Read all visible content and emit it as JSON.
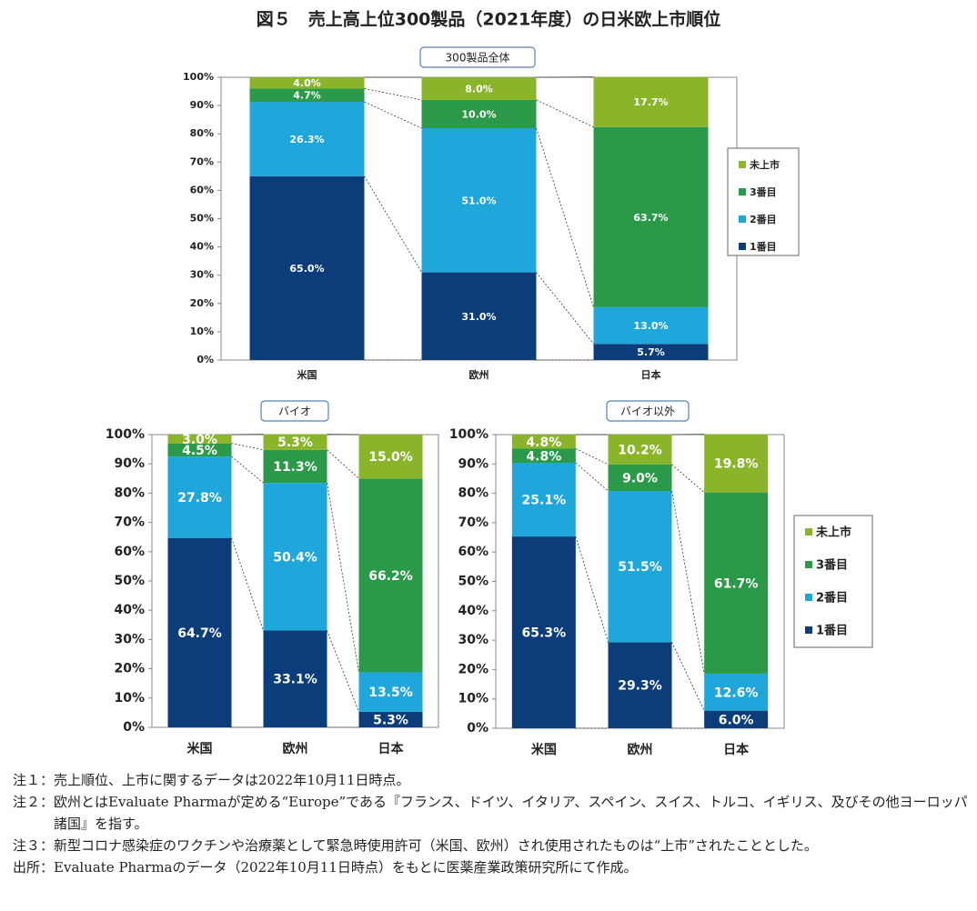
{
  "title": "図５　売上高上位300製品（2021年度）の日米欧上市順位",
  "chart_data": [
    {
      "type": "stacked_bar",
      "title": "300製品全体",
      "categories": [
        "米国",
        "欧州",
        "日本"
      ],
      "series": [
        {
          "name": "1番目",
          "color": "#0b3d7a",
          "values": [
            65.0,
            31.0,
            5.7
          ],
          "value_labels": [
            "65.0%",
            "31.0%",
            "5.7%"
          ]
        },
        {
          "name": "2番目",
          "color": "#1fa7dc",
          "values": [
            26.3,
            51.0,
            13.0
          ],
          "value_labels": [
            "26.3%",
            "51.0%",
            "13.0%"
          ]
        },
        {
          "name": "3番目",
          "color": "#2a9a48",
          "values": [
            4.7,
            10.0,
            63.7
          ],
          "value_labels": [
            "4.7%",
            "10.0%",
            "63.7%"
          ]
        },
        {
          "name": "未上市",
          "color": "#8ab52a",
          "values": [
            4.0,
            8.0,
            17.7
          ],
          "value_labels": [
            "4.0%",
            "8.0%",
            "17.7%"
          ]
        }
      ],
      "ylim": [
        0,
        100
      ],
      "yticks": [
        {
          "value": 0,
          "label": "0%"
        },
        {
          "value": 10,
          "label": "10%"
        },
        {
          "value": 20,
          "label": "20%"
        },
        {
          "value": 30,
          "label": "30%"
        },
        {
          "value": 40,
          "label": "40%"
        },
        {
          "value": 50,
          "label": "50%"
        },
        {
          "value": 60,
          "label": "60%"
        },
        {
          "value": 70,
          "label": "70%"
        },
        {
          "value": 80,
          "label": "80%"
        },
        {
          "value": 90,
          "label": "90%"
        },
        {
          "value": 100,
          "label": "100%"
        }
      ],
      "legend": "right"
    },
    {
      "type": "stacked_bar",
      "title": "バイオ",
      "categories": [
        "米国",
        "欧州",
        "日本"
      ],
      "series": [
        {
          "name": "1番目",
          "color": "#0b3d7a",
          "values": [
            64.7,
            33.1,
            5.3
          ],
          "value_labels": [
            "64.7%",
            "33.1%",
            "5.3%"
          ]
        },
        {
          "name": "2番目",
          "color": "#1fa7dc",
          "values": [
            27.8,
            50.4,
            13.5
          ],
          "value_labels": [
            "27.8%",
            "50.4%",
            "13.5%"
          ]
        },
        {
          "name": "3番目",
          "color": "#2a9a48",
          "values": [
            4.5,
            11.3,
            66.2
          ],
          "value_labels": [
            "4.5%",
            "11.3%",
            "66.2%"
          ]
        },
        {
          "name": "未上市",
          "color": "#8ab52a",
          "values": [
            3.0,
            5.3,
            15.0
          ],
          "value_labels": [
            "3.0%",
            "5.3%",
            "15.0%"
          ]
        }
      ],
      "ylim": [
        0,
        100
      ],
      "yticks": [
        {
          "value": 0,
          "label": "0%"
        },
        {
          "value": 10,
          "label": "10%"
        },
        {
          "value": 20,
          "label": "20%"
        },
        {
          "value": 30,
          "label": "30%"
        },
        {
          "value": 40,
          "label": "40%"
        },
        {
          "value": 50,
          "label": "50%"
        },
        {
          "value": 60,
          "label": "60%"
        },
        {
          "value": 70,
          "label": "70%"
        },
        {
          "value": 80,
          "label": "80%"
        },
        {
          "value": 90,
          "label": "90%"
        },
        {
          "value": 100,
          "label": "100%"
        }
      ]
    },
    {
      "type": "stacked_bar",
      "title": "バイオ以外",
      "categories": [
        "米国",
        "欧州",
        "日本"
      ],
      "series": [
        {
          "name": "1番目",
          "color": "#0b3d7a",
          "values": [
            65.3,
            29.3,
            6.0
          ],
          "value_labels": [
            "65.3%",
            "29.3%",
            "6.0%"
          ]
        },
        {
          "name": "2番目",
          "color": "#1fa7dc",
          "values": [
            25.1,
            51.5,
            12.6
          ],
          "value_labels": [
            "25.1%",
            "51.5%",
            "12.6%"
          ]
        },
        {
          "name": "3番目",
          "color": "#2a9a48",
          "values": [
            4.8,
            9.0,
            61.7
          ],
          "value_labels": [
            "4.8%",
            "9.0%",
            "61.7%"
          ]
        },
        {
          "name": "未上市",
          "color": "#8ab52a",
          "values": [
            4.8,
            10.2,
            19.8
          ],
          "value_labels": [
            "4.8%",
            "10.2%",
            "19.8%"
          ]
        }
      ],
      "ylim": [
        0,
        100
      ],
      "yticks": [
        {
          "value": 0,
          "label": "0%"
        },
        {
          "value": 10,
          "label": "10%"
        },
        {
          "value": 20,
          "label": "20%"
        },
        {
          "value": 30,
          "label": "30%"
        },
        {
          "value": 40,
          "label": "40%"
        },
        {
          "value": 50,
          "label": "50%"
        },
        {
          "value": 60,
          "label": "60%"
        },
        {
          "value": 70,
          "label": "70%"
        },
        {
          "value": 80,
          "label": "80%"
        },
        {
          "value": 90,
          "label": "90%"
        },
        {
          "value": 100,
          "label": "100%"
        }
      ],
      "legend": "right"
    }
  ],
  "notes": [
    {
      "label": "注１：",
      "text": "売上順位、上市に関するデータは2022年10月11日時点。"
    },
    {
      "label": "注２：",
      "text": "欧州とはEvaluate Pharmaが定める“Europe”である『フランス、ドイツ、イタリア、スペイン、スイス、トルコ、イギリス、及びその他ヨーロッパ諸国』を指す。"
    },
    {
      "label": "注３：",
      "text": "新型コロナ感染症のワクチンや治療薬として緊急時使用許可（米国、欧州）され使用されたものは“上市”されたこととした。"
    },
    {
      "label": "出所：",
      "text": "Evaluate Pharmaのデータ（2022年10月11日時点）をもとに医薬産業政策研究所にて作成。"
    }
  ]
}
